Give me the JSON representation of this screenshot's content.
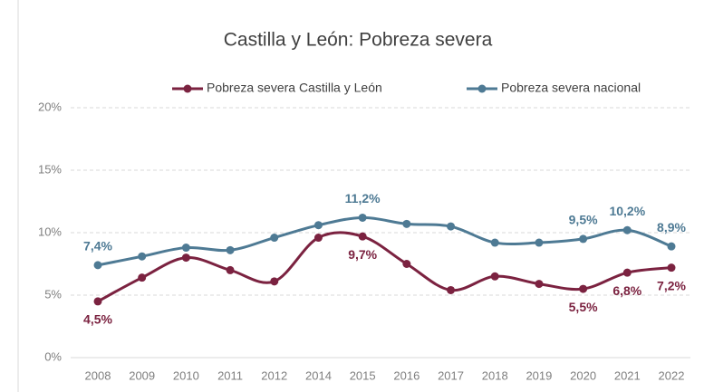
{
  "chart_data": {
    "type": "line",
    "title": "Castilla y León: Pobreza severa",
    "categories": [
      "2008",
      "2009",
      "2010",
      "2011",
      "2012",
      "2014",
      "2015",
      "2016",
      "2017",
      "2018",
      "2019",
      "2020",
      "2021",
      "2022"
    ],
    "series": [
      {
        "name": "Pobreza severa Castilla y León",
        "color": "#7b2240",
        "values": [
          4.5,
          6.4,
          8.0,
          7.0,
          6.1,
          9.6,
          9.7,
          7.5,
          5.4,
          6.5,
          5.9,
          5.5,
          6.8,
          7.2
        ],
        "value_labels": [
          "4,5%",
          null,
          null,
          null,
          null,
          null,
          "9,7%",
          null,
          null,
          null,
          null,
          "5,5%",
          "6,8%",
          "7,2%"
        ]
      },
      {
        "name": "Pobreza severa nacional",
        "color": "#4e7a94",
        "values": [
          7.4,
          8.1,
          8.8,
          8.6,
          9.6,
          10.6,
          11.2,
          10.7,
          10.5,
          9.2,
          9.2,
          9.5,
          10.2,
          8.9
        ],
        "value_labels": [
          "7,4%",
          null,
          null,
          null,
          null,
          null,
          "11,2%",
          null,
          null,
          null,
          null,
          "9,5%",
          "10,2%",
          "8,9%"
        ]
      }
    ],
    "ylim": [
      0,
      20
    ],
    "yticks": [
      {
        "value": 0,
        "label": "0%"
      },
      {
        "value": 5,
        "label": "5%"
      },
      {
        "value": 10,
        "label": "10%"
      },
      {
        "value": 15,
        "label": "15%"
      },
      {
        "value": 20,
        "label": "20%"
      }
    ],
    "grid": true
  }
}
